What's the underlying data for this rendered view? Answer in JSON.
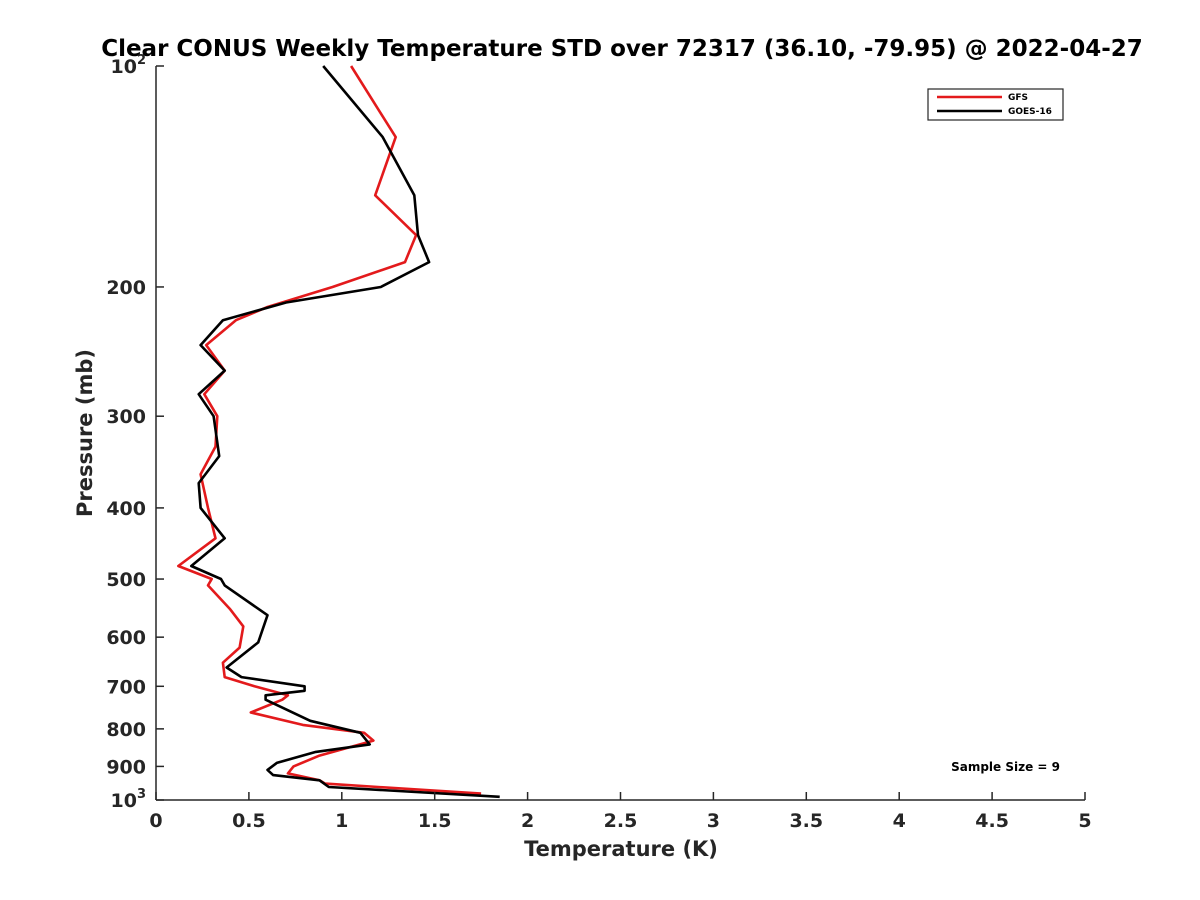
{
  "chart_data": {
    "type": "line",
    "title": "Clear CONUS Weekly Temperature STD over 72317 (36.10, -79.95) @ 2022-04-27",
    "xlabel": "Temperature (K)",
    "ylabel": "Pressure (mb)",
    "xlim": [
      0,
      5
    ],
    "ylim": [
      100,
      1000
    ],
    "y_scale": "log",
    "y_reversed": true,
    "x_ticks": [
      0,
      0.5,
      1,
      1.5,
      2,
      2.5,
      3,
      3.5,
      4,
      4.5,
      5
    ],
    "x_tick_labels": [
      "0",
      "0.5",
      "1",
      "1.5",
      "2",
      "2.5",
      "3",
      "3.5",
      "4",
      "4.5",
      "5"
    ],
    "y_ticks": [
      100,
      200,
      300,
      400,
      500,
      600,
      700,
      800,
      900,
      1000
    ],
    "y_tick_labels": [
      {
        "base": "10",
        "exp": "2"
      },
      {
        "base": "200"
      },
      {
        "base": "300"
      },
      {
        "base": "400"
      },
      {
        "base": "500"
      },
      {
        "base": "600"
      },
      {
        "base": "700"
      },
      {
        "base": "800"
      },
      {
        "base": "900"
      },
      {
        "base": "10",
        "exp": "3"
      }
    ],
    "grid": false,
    "legend_position": "top-right",
    "annotation": "Sample Size = 9",
    "series": [
      {
        "name": "GFS",
        "color": "#e31a1c",
        "points": [
          [
            1.05,
            100
          ],
          [
            1.29,
            125
          ],
          [
            1.18,
            150
          ],
          [
            1.4,
            170
          ],
          [
            1.34,
            185
          ],
          [
            0.95,
            200
          ],
          [
            0.6,
            213
          ],
          [
            0.43,
            222
          ],
          [
            0.27,
            240
          ],
          [
            0.37,
            260
          ],
          [
            0.26,
            280
          ],
          [
            0.33,
            300
          ],
          [
            0.32,
            330
          ],
          [
            0.24,
            360
          ],
          [
            0.28,
            400
          ],
          [
            0.32,
            440
          ],
          [
            0.12,
            480
          ],
          [
            0.3,
            500
          ],
          [
            0.28,
            510
          ],
          [
            0.4,
            550
          ],
          [
            0.47,
            580
          ],
          [
            0.45,
            620
          ],
          [
            0.36,
            650
          ],
          [
            0.37,
            680
          ],
          [
            0.53,
            700
          ],
          [
            0.71,
            720
          ],
          [
            0.68,
            730
          ],
          [
            0.51,
            760
          ],
          [
            0.79,
            790
          ],
          [
            1.12,
            810
          ],
          [
            1.17,
            830
          ],
          [
            0.88,
            870
          ],
          [
            0.74,
            900
          ],
          [
            0.71,
            920
          ],
          [
            0.88,
            940
          ],
          [
            0.91,
            950
          ],
          [
            1.75,
            980
          ]
        ]
      },
      {
        "name": "GOES-16",
        "color": "#000000",
        "points": [
          [
            0.9,
            100
          ],
          [
            1.22,
            125
          ],
          [
            1.39,
            150
          ],
          [
            1.41,
            170
          ],
          [
            1.47,
            185
          ],
          [
            1.21,
            200
          ],
          [
            0.7,
            210
          ],
          [
            0.36,
            222
          ],
          [
            0.24,
            240
          ],
          [
            0.37,
            260
          ],
          [
            0.23,
            280
          ],
          [
            0.31,
            300
          ],
          [
            0.34,
            340
          ],
          [
            0.23,
            370
          ],
          [
            0.24,
            400
          ],
          [
            0.37,
            440
          ],
          [
            0.19,
            480
          ],
          [
            0.35,
            500
          ],
          [
            0.37,
            510
          ],
          [
            0.6,
            560
          ],
          [
            0.55,
            610
          ],
          [
            0.38,
            660
          ],
          [
            0.46,
            680
          ],
          [
            0.8,
            700
          ],
          [
            0.8,
            710
          ],
          [
            0.59,
            720
          ],
          [
            0.59,
            730
          ],
          [
            0.83,
            780
          ],
          [
            1.1,
            810
          ],
          [
            1.15,
            840
          ],
          [
            0.86,
            860
          ],
          [
            0.65,
            890
          ],
          [
            0.6,
            910
          ],
          [
            0.63,
            925
          ],
          [
            0.88,
            940
          ],
          [
            0.93,
            960
          ],
          [
            1.85,
            990
          ]
        ]
      }
    ]
  }
}
